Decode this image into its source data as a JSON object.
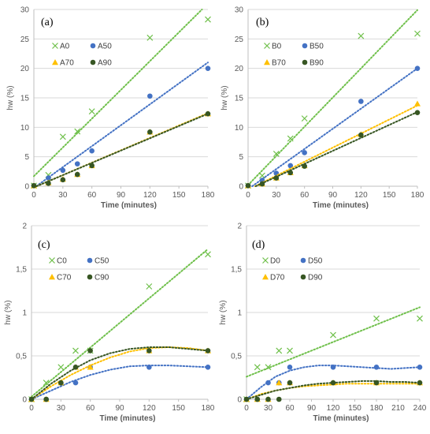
{
  "chart_data": [
    {
      "type": "scatter",
      "panel_label": "(a)",
      "xlabel": "Time (minutes)",
      "ylabel": "hw (%)",
      "xlim": [
        0,
        180
      ],
      "ylim": [
        0,
        30
      ],
      "xticks": [
        "0",
        "30",
        "60",
        "90",
        "120",
        "150",
        "180"
      ],
      "yticks": [
        "0",
        "5",
        "10",
        "15",
        "20",
        "25",
        "30"
      ],
      "legend_placement": "top-left",
      "series": [
        {
          "name": "A0",
          "color": "#70c04c",
          "marker": "x",
          "x": [
            0,
            15,
            30,
            45,
            60,
            120,
            180
          ],
          "y": [
            0.1,
            1.9,
            8.4,
            9.3,
            12.7,
            25.2,
            28.3
          ],
          "trend": {
            "kind": "linear",
            "x": [
              0,
              180
            ],
            "y": [
              1.7,
              31.0
            ]
          }
        },
        {
          "name": "A50",
          "color": "#4472c4",
          "marker": "circle",
          "x": [
            0,
            15,
            30,
            45,
            60,
            120,
            180
          ],
          "y": [
            0.1,
            1.4,
            2.7,
            3.8,
            6.0,
            15.3,
            20.0
          ],
          "trend": {
            "kind": "linear",
            "x": [
              0,
              180
            ],
            "y": [
              -0.3,
              21.0
            ]
          }
        },
        {
          "name": "A70",
          "color": "#ffc000",
          "marker": "triangle",
          "x": [
            0,
            15,
            30,
            45,
            60,
            120,
            180
          ],
          "y": [
            0.1,
            0.6,
            1.2,
            2.0,
            3.5,
            9.2,
            12.3
          ],
          "trend": {
            "kind": "linear",
            "x": [
              0,
              180
            ],
            "y": [
              -0.2,
              12.4
            ]
          }
        },
        {
          "name": "A90",
          "color": "#375623",
          "marker": "circle",
          "x": [
            0,
            15,
            30,
            45,
            60,
            120,
            180
          ],
          "y": [
            0.1,
            0.5,
            1.1,
            2.0,
            3.5,
            9.2,
            12.3
          ],
          "trend": {
            "kind": "linear",
            "x": [
              0,
              180
            ],
            "y": [
              -0.2,
              12.3
            ]
          }
        }
      ]
    },
    {
      "type": "scatter",
      "panel_label": "(b)",
      "xlabel": "Time (minutes)",
      "ylabel": "hw (%)",
      "xlim": [
        0,
        180
      ],
      "ylim": [
        0,
        30
      ],
      "xticks": [
        "0",
        "30",
        "60",
        "90",
        "120",
        "150",
        "180"
      ],
      "yticks": [
        "0",
        "5",
        "10",
        "15",
        "20",
        "25",
        "30"
      ],
      "legend_placement": "top-left",
      "series": [
        {
          "name": "B0",
          "color": "#70c04c",
          "marker": "x",
          "x": [
            0,
            15,
            30,
            45,
            60,
            120,
            180
          ],
          "y": [
            0.1,
            1.8,
            5.5,
            8.1,
            11.5,
            25.5,
            25.9
          ],
          "trend": {
            "kind": "linear",
            "x": [
              0,
              180
            ],
            "y": [
              0.2,
              29.9
            ]
          }
        },
        {
          "name": "B50",
          "color": "#4472c4",
          "marker": "circle",
          "x": [
            0,
            15,
            30,
            45,
            60,
            120,
            180
          ],
          "y": [
            0.1,
            1.0,
            2.2,
            3.5,
            5.7,
            14.4,
            20.0
          ],
          "trend": {
            "kind": "linear",
            "x": [
              0,
              180
            ],
            "y": [
              -0.5,
              20.0
            ]
          }
        },
        {
          "name": "B70",
          "color": "#ffc000",
          "marker": "triangle",
          "x": [
            0,
            15,
            30,
            45,
            60,
            120,
            180
          ],
          "y": [
            0.1,
            0.4,
            1.4,
            2.3,
            3.5,
            8.8,
            14.0
          ],
          "trend": {
            "kind": "linear",
            "x": [
              0,
              180
            ],
            "y": [
              -0.6,
              13.7
            ]
          }
        },
        {
          "name": "B90",
          "color": "#375623",
          "marker": "circle",
          "x": [
            0,
            15,
            30,
            45,
            60,
            120,
            180
          ],
          "y": [
            0.1,
            0.4,
            1.4,
            2.3,
            3.4,
            8.7,
            12.5
          ],
          "trend": {
            "kind": "linear",
            "x": [
              0,
              180
            ],
            "y": [
              -0.6,
              12.6
            ]
          }
        }
      ]
    },
    {
      "type": "scatter",
      "panel_label": "(c)",
      "xlabel": "Time (minutes)",
      "ylabel": "hw (%)",
      "xlim": [
        0,
        180
      ],
      "ylim": [
        0,
        2
      ],
      "xticks": [
        "0",
        "30",
        "60",
        "90",
        "120",
        "150",
        "180"
      ],
      "yticks": [
        "0",
        "0,5",
        "1",
        "1,5",
        "2"
      ],
      "legend_placement": "top-left",
      "series": [
        {
          "name": "C0",
          "color": "#70c04c",
          "marker": "x",
          "x": [
            0,
            15,
            30,
            45,
            60,
            120,
            180
          ],
          "y": [
            0.0,
            0.19,
            0.37,
            0.56,
            0.56,
            1.3,
            1.67
          ],
          "trend": {
            "kind": "linear",
            "x": [
              0,
              180
            ],
            "y": [
              0.03,
              1.73
            ]
          }
        },
        {
          "name": "C50",
          "color": "#4472c4",
          "marker": "circle",
          "x": [
            0,
            15,
            30,
            45,
            60,
            120,
            180
          ],
          "y": [
            0.0,
            0.0,
            0.19,
            0.19,
            0.37,
            0.37,
            0.37
          ],
          "trend": {
            "kind": "poly",
            "x": [
              0,
              20,
              40,
              60,
              80,
              100,
              120,
              140,
              160,
              180
            ],
            "y": [
              0.0,
              0.1,
              0.2,
              0.28,
              0.34,
              0.38,
              0.39,
              0.39,
              0.38,
              0.37
            ]
          }
        },
        {
          "name": "C70",
          "color": "#ffc000",
          "marker": "triangle",
          "x": [
            0,
            15,
            30,
            45,
            60,
            120,
            180
          ],
          "y": [
            0.0,
            0.0,
            0.19,
            0.37,
            0.37,
            0.56,
            0.56
          ],
          "trend": {
            "kind": "poly",
            "x": [
              0,
              20,
              40,
              60,
              80,
              100,
              120,
              140,
              160,
              180
            ],
            "y": [
              0.0,
              0.15,
              0.28,
              0.39,
              0.48,
              0.55,
              0.59,
              0.6,
              0.59,
              0.56
            ]
          }
        },
        {
          "name": "C90",
          "color": "#375623",
          "marker": "circle",
          "x": [
            0,
            15,
            30,
            45,
            60,
            120,
            180
          ],
          "y": [
            0.0,
            0.0,
            0.19,
            0.37,
            0.56,
            0.56,
            0.56
          ],
          "trend": {
            "kind": "poly",
            "x": [
              0,
              20,
              40,
              60,
              80,
              100,
              120,
              140,
              160,
              180
            ],
            "y": [
              0.0,
              0.18,
              0.33,
              0.45,
              0.53,
              0.58,
              0.6,
              0.6,
              0.58,
              0.56
            ]
          }
        }
      ]
    },
    {
      "type": "scatter",
      "panel_label": "(d)",
      "xlabel": "Time (minutes)",
      "ylabel": "hw (%)",
      "xlim": [
        0,
        240
      ],
      "ylim": [
        0,
        2
      ],
      "xticks": [
        "0",
        "30",
        "60",
        "90",
        "120",
        "150",
        "180",
        "210",
        "240"
      ],
      "yticks": [
        "0",
        "0,5",
        "1",
        "1,5",
        "2"
      ],
      "legend_placement": "top-left",
      "series": [
        {
          "name": "D0",
          "color": "#70c04c",
          "marker": "x",
          "x": [
            0,
            15,
            30,
            45,
            60,
            120,
            180,
            240
          ],
          "y": [
            0.0,
            0.37,
            0.37,
            0.56,
            0.56,
            0.74,
            0.93,
            0.93
          ],
          "trend": {
            "kind": "linear",
            "x": [
              0,
              240
            ],
            "y": [
              0.26,
              1.06
            ]
          }
        },
        {
          "name": "D50",
          "color": "#4472c4",
          "marker": "circle",
          "x": [
            0,
            15,
            30,
            45,
            60,
            120,
            180,
            240
          ],
          "y": [
            0.0,
            0.0,
            0.19,
            0.19,
            0.37,
            0.37,
            0.37,
            0.37
          ],
          "trend": {
            "kind": "poly",
            "x": [
              0,
              20,
              40,
              60,
              80,
              100,
              120,
              140,
              160,
              180,
              200,
              220,
              240
            ],
            "y": [
              0.0,
              0.14,
              0.26,
              0.33,
              0.37,
              0.39,
              0.39,
              0.38,
              0.37,
              0.36,
              0.35,
              0.36,
              0.37
            ]
          }
        },
        {
          "name": "D70",
          "color": "#ffc000",
          "marker": "triangle",
          "x": [
            0,
            15,
            30,
            45,
            60,
            120,
            180,
            240
          ],
          "y": [
            0.0,
            0.0,
            0.0,
            0.19,
            0.19,
            0.19,
            0.19,
            0.19
          ],
          "trend": {
            "kind": "poly",
            "x": [
              0,
              20,
              40,
              60,
              80,
              100,
              120,
              140,
              160,
              180,
              200,
              220,
              240
            ],
            "y": [
              0.0,
              0.06,
              0.1,
              0.13,
              0.15,
              0.16,
              0.17,
              0.18,
              0.18,
              0.18,
              0.18,
              0.18,
              0.18
            ]
          }
        },
        {
          "name": "D90",
          "color": "#375623",
          "marker": "circle",
          "x": [
            0,
            15,
            30,
            45,
            60,
            120,
            180,
            240
          ],
          "y": [
            0.0,
            0.0,
            0.0,
            0.0,
            0.19,
            0.19,
            0.19,
            0.19
          ],
          "trend": {
            "kind": "poly",
            "x": [
              0,
              20,
              40,
              60,
              80,
              100,
              120,
              140,
              160,
              180,
              200,
              220,
              240
            ],
            "y": [
              0.0,
              0.05,
              0.1,
              0.13,
              0.16,
              0.18,
              0.19,
              0.2,
              0.21,
              0.21,
              0.2,
              0.2,
              0.19
            ]
          }
        }
      ]
    }
  ]
}
